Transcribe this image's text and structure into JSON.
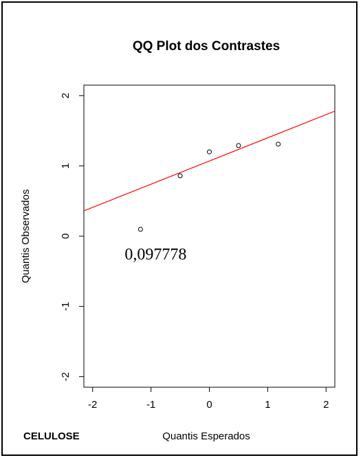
{
  "chart_data": {
    "type": "scatter",
    "title": "QQ Plot dos Contrastes",
    "xlabel": "Quantis Esperados",
    "ylabel": "Quantis Observados",
    "xlim": [
      -2.15,
      2.15
    ],
    "ylim": [
      -2.15,
      2.15
    ],
    "xticks": [
      -2,
      -1,
      0,
      1,
      2
    ],
    "yticks": [
      -2,
      -1,
      0,
      1,
      2
    ],
    "x_tick_labels": [
      "-2",
      "-1",
      "0",
      "1",
      "2"
    ],
    "y_tick_labels": [
      "-2",
      "-1",
      "0",
      "1",
      "2"
    ],
    "points": [
      {
        "x": -1.18,
        "y": 0.097778
      },
      {
        "x": -0.5,
        "y": 0.86
      },
      {
        "x": 0.0,
        "y": 1.2
      },
      {
        "x": 0.5,
        "y": 1.29
      },
      {
        "x": 1.18,
        "y": 1.31
      }
    ],
    "reference_line": {
      "slope": 0.33,
      "intercept": 1.07,
      "color": "#ff0000"
    },
    "annotation": {
      "text": "0,097778",
      "x": -1.45,
      "y": -0.33
    },
    "grid": false,
    "point_color": "#000000"
  },
  "corner_label": "CELULOSE"
}
